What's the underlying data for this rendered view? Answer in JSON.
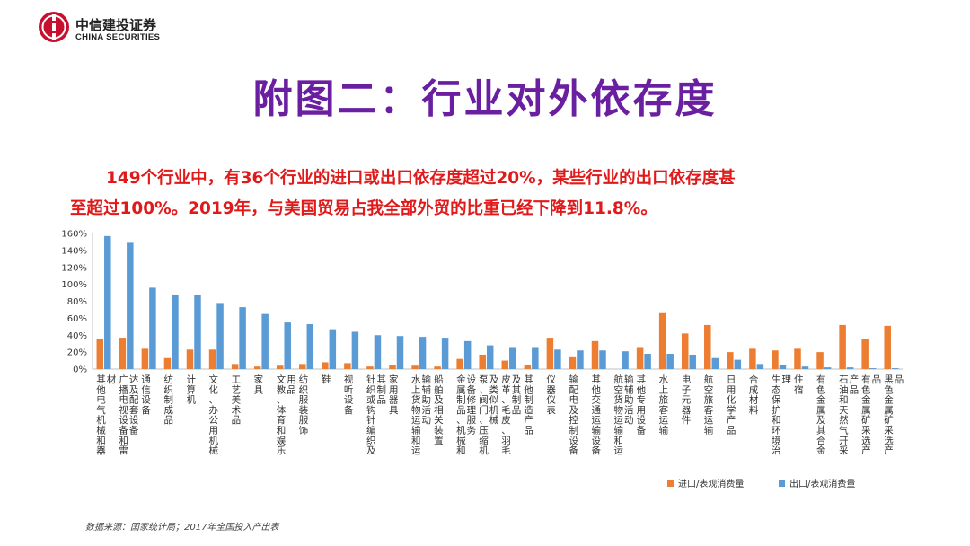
{
  "header": {
    "logo_cn": "中信建投证券",
    "logo_en": "CHINA SECURITIES",
    "brand_color": "#c8102e"
  },
  "slide": {
    "title": "附图二：行业对外依存度",
    "subtitle_line1": "149个行业中，有36个行业的进口或出口依存度超过20%，某些行业的出口依存度甚",
    "subtitle_line2": "至超过100%。2019年，与美国贸易占我全部外贸的比重已经下降到11.8%。",
    "source": "数据来源：国家统计局；2017年全国投入产出表"
  },
  "chart_data": {
    "type": "bar",
    "ylim": [
      0,
      1.6
    ],
    "yticks": [
      "0%",
      "20%",
      "40%",
      "60%",
      "80%",
      "100%",
      "120%",
      "140%",
      "160%"
    ],
    "grid": false,
    "legend_position": "bottom-right",
    "categories": [
      "其他电气机械和器材",
      "广播电视设备和雷达及配套设备",
      "通信设备",
      "纺织制成品",
      "计算机",
      "文化、办公用机械",
      "工艺美术品",
      "家具",
      "文教、体育和娱乐用品",
      "纺织服装服饰",
      "鞋",
      "视听设备",
      "针织或钩针编织及其制品",
      "家用器具",
      "水上货物运输和运输辅助活动",
      "船舶及相关装置",
      "金属制品、机械和设备修理服务",
      "泵、阀门、压缩机及类似机械",
      "皮革、毛皮、羽毛及其制品",
      "其他制造产品",
      "仪器仪表",
      "输配电及控制设备",
      "其他交通运输设备",
      "航空货物运输和运输辅助活动",
      "其他专用设备",
      "水上旅客运输",
      "电子元器件",
      "航空旅客运输",
      "日用化学产品",
      "合成材料",
      "生态保护和环境治理",
      "住宿",
      "有色金属及其合金",
      "石油和天然气开采产品",
      "有色金属矿采选产品",
      "黑色金属矿采选产品"
    ],
    "series": [
      {
        "name": "进口/表观消费量",
        "color": "#ed7d31",
        "values": [
          0.35,
          0.37,
          0.24,
          0.13,
          0.23,
          0.23,
          0.06,
          0.03,
          0.04,
          0.06,
          0.08,
          0.07,
          0.03,
          0.05,
          0.04,
          0.03,
          0.12,
          0.17,
          0.1,
          0.05,
          0.37,
          0.15,
          0.33,
          0.0,
          0.26,
          0.67,
          0.42,
          0.52,
          0.2,
          0.24,
          0.22,
          0.24,
          0.2,
          0.52,
          0.35,
          0.51
        ]
      },
      {
        "name": "出口/表观消费量",
        "color": "#5b9bd5",
        "values": [
          1.57,
          1.49,
          0.96,
          0.88,
          0.87,
          0.78,
          0.73,
          0.65,
          0.55,
          0.53,
          0.47,
          0.44,
          0.4,
          0.39,
          0.38,
          0.37,
          0.33,
          0.28,
          0.26,
          0.26,
          0.23,
          0.22,
          0.22,
          0.21,
          0.18,
          0.18,
          0.17,
          0.13,
          0.11,
          0.06,
          0.05,
          0.03,
          0.02,
          0.02,
          0.01,
          0.01
        ]
      }
    ]
  }
}
